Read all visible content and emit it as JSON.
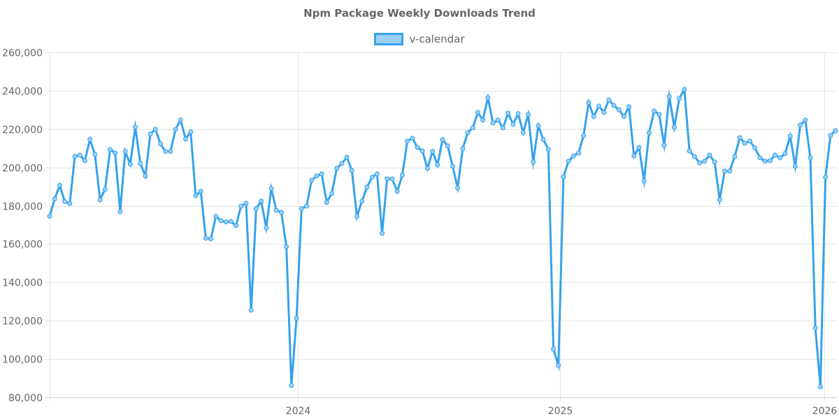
{
  "header": {
    "title": "Npm Package Weekly Downloads Trend"
  },
  "legend": {
    "items": [
      {
        "label": "v-calendar",
        "border_color": "#36a2eb",
        "fill_color": "#9ad0f5"
      }
    ]
  },
  "colors": {
    "line": "#36a2eb",
    "point_fill": "#9ad0f5",
    "grid": "#e5e5e5",
    "text": "#666666"
  },
  "chart_data": {
    "type": "line",
    "title": "Npm Package Weekly Downloads Trend",
    "xlabel": "",
    "ylabel": "",
    "ylim": [
      80000,
      260000
    ],
    "y_ticks": [
      "80,000",
      "100,000",
      "120,000",
      "140,000",
      "160,000",
      "180,000",
      "200,000",
      "220,000",
      "240,000",
      "260,000"
    ],
    "y_tick_values": [
      80000,
      100000,
      120000,
      140000,
      160000,
      180000,
      200000,
      220000,
      240000,
      260000
    ],
    "x_ticks": [
      {
        "label": "2024",
        "index": 49.25
      },
      {
        "label": "2025",
        "index": 101.3
      },
      {
        "label": "2026",
        "index": 153.8
      }
    ],
    "grid": true,
    "legend_position": "top",
    "series": [
      {
        "name": "v-calendar",
        "values": [
          174500,
          183600,
          190600,
          182200,
          181100,
          205700,
          206400,
          203500,
          214500,
          206800,
          183100,
          188500,
          209300,
          207500,
          176900,
          208300,
          201700,
          221000,
          202000,
          195500,
          217400,
          219900,
          212300,
          208300,
          208300,
          219900,
          224700,
          214800,
          218500,
          185300,
          187500,
          163000,
          162700,
          174400,
          172200,
          171500,
          171800,
          169600,
          179800,
          181300,
          125500,
          178400,
          182400,
          168500,
          189000,
          177600,
          176600,
          158700,
          86200,
          121200,
          178400,
          179800,
          193300,
          195500,
          196600,
          181700,
          186400,
          199500,
          202000,
          205300,
          198400,
          174400,
          182400,
          189700,
          194800,
          196600,
          165600,
          194000,
          194000,
          187500,
          195900,
          213700,
          215200,
          210400,
          208600,
          199500,
          208300,
          201300,
          214500,
          211200,
          200600,
          189300,
          209700,
          218100,
          220600,
          228700,
          224700,
          236300,
          223200,
          224700,
          220600,
          228300,
          222500,
          228000,
          218100,
          227600,
          202800,
          221700,
          214500,
          209400,
          105100,
          96700,
          195100,
          203200,
          206000,
          207500,
          216600,
          233800,
          226500,
          232000,
          228700,
          235200,
          232300,
          230100,
          226500,
          231600,
          206000,
          210400,
          193000,
          218100,
          229400,
          227600,
          211500,
          237000,
          221000,
          236000,
          240700,
          208600,
          205700,
          202400,
          203200,
          206400,
          202800,
          183100,
          198100,
          198100,
          205700,
          215500,
          212600,
          213700,
          210100,
          205000,
          203200,
          203500,
          206400,
          205000,
          207200,
          216300,
          200600,
          222100,
          224700,
          205000,
          116100,
          85500,
          194800,
          216600,
          219200
        ]
      }
    ]
  }
}
